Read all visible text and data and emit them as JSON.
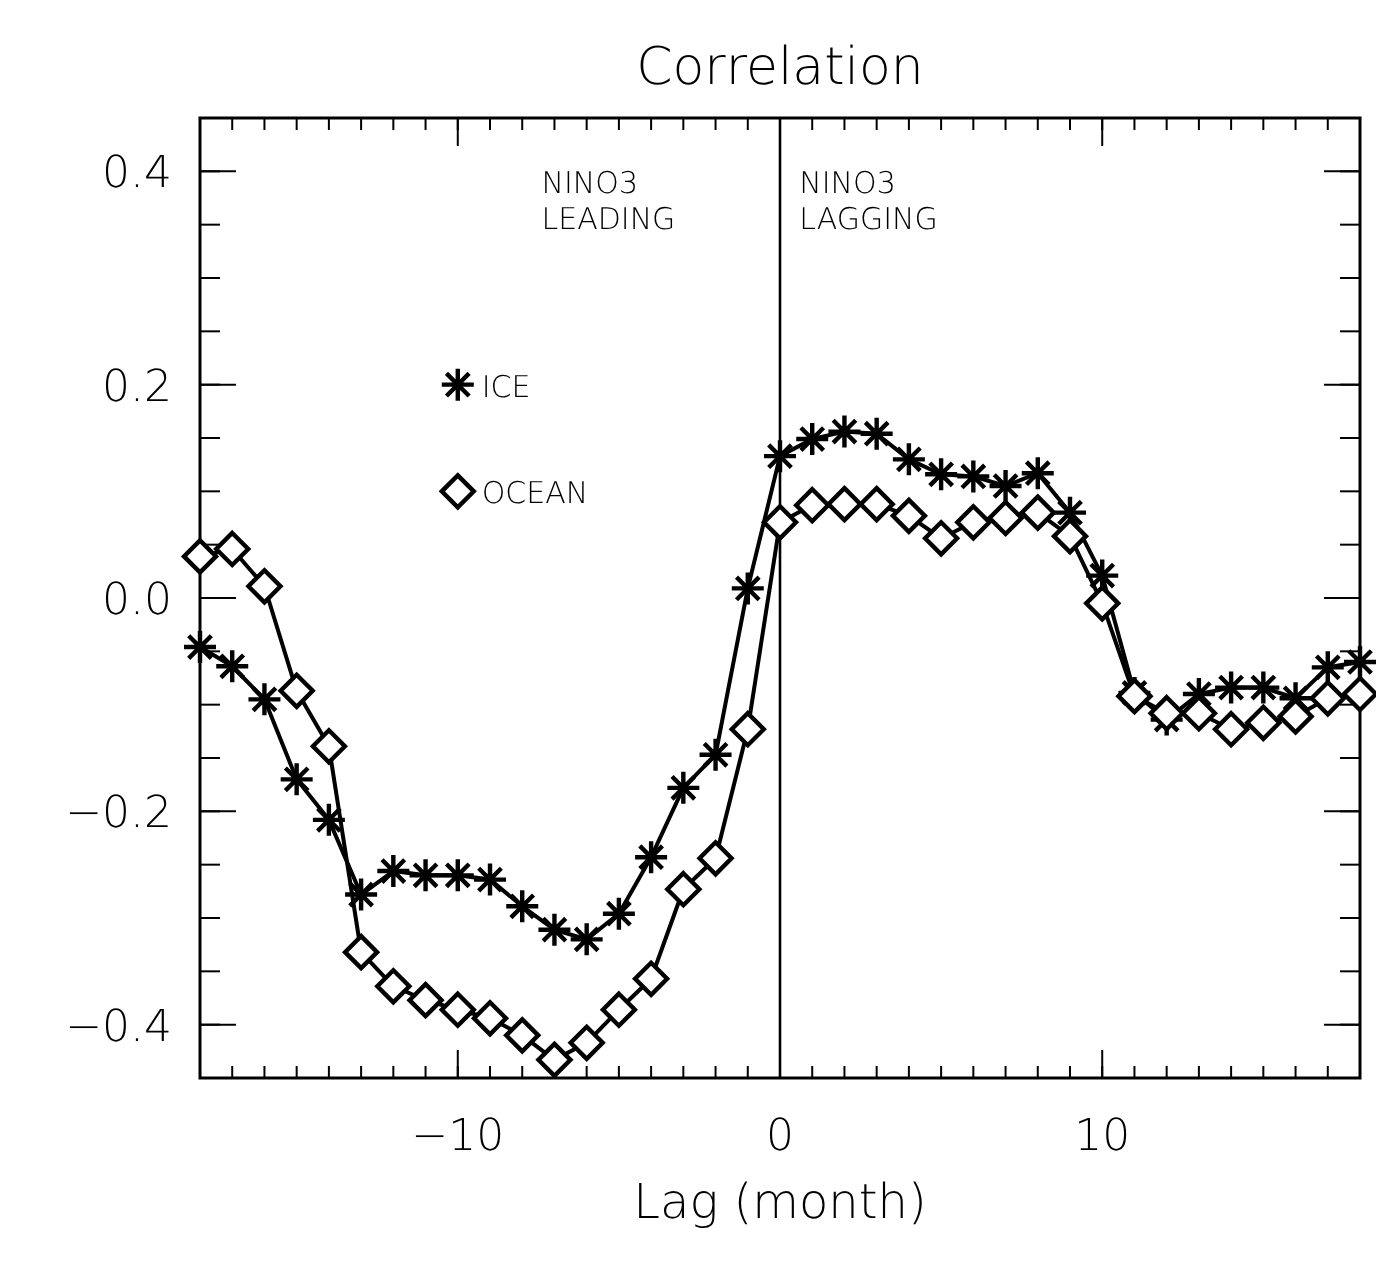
{
  "chart_data": {
    "type": "line",
    "title": "Correlation",
    "xlabel": "Lag (month)",
    "x": [
      -18,
      -17,
      -16,
      -15,
      -14,
      -13,
      -12,
      -11,
      -10,
      -9,
      -8,
      -7,
      -6,
      -5,
      -4,
      -3,
      -2,
      -1,
      0,
      1,
      2,
      3,
      4,
      5,
      6,
      7,
      8,
      9,
      10,
      11,
      12,
      13,
      14,
      15,
      16,
      17,
      18
    ],
    "series": [
      {
        "name": "ICE",
        "color": "#000000",
        "marker": "cross",
        "values": [
          -0.046,
          -0.064,
          -0.095,
          -0.17,
          -0.208,
          -0.278,
          -0.256,
          -0.26,
          -0.26,
          -0.264,
          -0.289,
          -0.311,
          -0.32,
          -0.296,
          -0.243,
          -0.178,
          -0.147,
          0.009,
          0.133,
          0.149,
          0.156,
          0.154,
          0.13,
          0.116,
          0.114,
          0.105,
          0.117,
          0.08,
          0.021,
          -0.089,
          -0.114,
          -0.09,
          -0.084,
          -0.084,
          -0.094,
          -0.065,
          -0.06
        ]
      },
      {
        "name": "OCEAN",
        "color": "#000000",
        "marker": "diamond",
        "values": [
          0.039,
          0.046,
          0.011,
          -0.087,
          -0.139,
          -0.332,
          -0.364,
          -0.377,
          -0.386,
          -0.394,
          -0.41,
          -0.433,
          -0.417,
          -0.386,
          -0.357,
          -0.273,
          -0.244,
          -0.123,
          0.071,
          0.087,
          0.088,
          0.088,
          0.077,
          0.056,
          0.071,
          0.075,
          0.08,
          0.058,
          -0.005,
          -0.092,
          -0.108,
          -0.108,
          -0.123,
          -0.117,
          -0.111,
          -0.094,
          -0.09
        ]
      }
    ],
    "xlim": [
      -18,
      18
    ],
    "xticks": [
      -10,
      0,
      10
    ],
    "ylim": [
      -0.45,
      0.45
    ],
    "yticks": [
      -0.4,
      -0.2,
      {
        "value": 0,
        "label": "0.0"
      },
      0.2,
      0.4
    ],
    "ref_lines": [
      {
        "axis": "x",
        "value": 0
      }
    ],
    "annotations": [
      "NINO3\nLEADING",
      "NINO3\nLAGGING"
    ],
    "legend": "left",
    "grid": false
  }
}
